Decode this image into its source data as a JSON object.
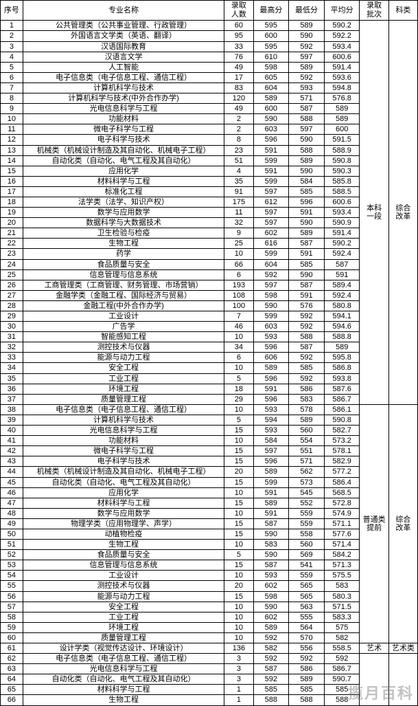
{
  "headers": {
    "idx": "序号",
    "major": "专业名称",
    "count": "录取\n人数",
    "max": "最高分",
    "min": "最低分",
    "avg": "平均分",
    "batch": "录取\n批次",
    "cat": "科类"
  },
  "groups": [
    {
      "batch": "本科\n一段",
      "cat": "综合\n改革",
      "rows": [
        {
          "i": 1,
          "m": "公共管理类（公共事业管理、行政管理）",
          "c": 60,
          "hi": 595,
          "lo": 589,
          "av": "590.2"
        },
        {
          "i": 2,
          "m": "外国语言文学类（英语、翻译）",
          "c": 95,
          "hi": 600,
          "lo": 590,
          "av": "592.2"
        },
        {
          "i": 3,
          "m": "汉语国际教育",
          "c": 33,
          "hi": 595,
          "lo": 592,
          "av": "593.4"
        },
        {
          "i": 4,
          "m": "汉语言文学",
          "c": 76,
          "hi": 610,
          "lo": 597,
          "av": "600.6"
        },
        {
          "i": 5,
          "m": "人工智能",
          "c": 49,
          "hi": 598,
          "lo": 589,
          "av": "591.4"
        },
        {
          "i": 6,
          "m": "电子信息类（电子信息工程、通信工程）",
          "c": 17,
          "hi": 605,
          "lo": 592,
          "av": "593.6"
        },
        {
          "i": 7,
          "m": "计算机科学与技术",
          "c": 83,
          "hi": 604,
          "lo": 593,
          "av": "594.8"
        },
        {
          "i": 8,
          "m": "计算机科学与技术(中外合作办学)",
          "c": 120,
          "hi": 589,
          "lo": 571,
          "av": "576.8"
        },
        {
          "i": 9,
          "m": "光电信息科学与工程",
          "c": 49,
          "hi": 600,
          "lo": 587,
          "av": "589"
        },
        {
          "i": 10,
          "m": "功能材料",
          "c": 2,
          "hi": 590,
          "lo": 588,
          "av": "589"
        },
        {
          "i": 11,
          "m": "微电子科学与工程",
          "c": 2,
          "hi": 603,
          "lo": 597,
          "av": "600"
        },
        {
          "i": 12,
          "m": "电子科学与技术",
          "c": 8,
          "hi": 596,
          "lo": 590,
          "av": "591.5"
        },
        {
          "i": 13,
          "m": "机械类（机械设计制造及其自动化、机械电子工程）",
          "c": 23,
          "hi": 591,
          "lo": 588,
          "av": "588.9"
        },
        {
          "i": 14,
          "m": "自动化类（自动化、电气工程及其自动化）",
          "c": 51,
          "hi": 599,
          "lo": 589,
          "av": "590.8"
        },
        {
          "i": 15,
          "m": "应用化学",
          "c": 4,
          "hi": 591,
          "lo": 590,
          "av": "590.3"
        },
        {
          "i": 16,
          "m": "材料科学与工程",
          "c": 35,
          "hi": 599,
          "lo": 584,
          "av": "585.8"
        },
        {
          "i": 17,
          "m": "标准化工程",
          "c": 91,
          "hi": 597,
          "lo": 585,
          "av": "588.5"
        },
        {
          "i": 18,
          "m": "法学类（法学、知识产权）",
          "c": 175,
          "hi": 612,
          "lo": 596,
          "av": "600.6"
        },
        {
          "i": 19,
          "m": "数学与应用数学",
          "c": 11,
          "hi": 597,
          "lo": 591,
          "av": "593.4"
        },
        {
          "i": 20,
          "m": "数据科学与大数据技术",
          "c": 32,
          "hi": 597,
          "lo": 590,
          "av": "590.9"
        },
        {
          "i": 21,
          "m": "卫生检验与检疫",
          "c": 9,
          "hi": 602,
          "lo": 589,
          "av": "591.4"
        },
        {
          "i": 22,
          "m": "生物工程",
          "c": 25,
          "hi": 616,
          "lo": 587,
          "av": "590.2"
        },
        {
          "i": 23,
          "m": "药学",
          "c": 10,
          "hi": 599,
          "lo": 591,
          "av": "592.4"
        },
        {
          "i": 24,
          "m": "食品质量与安全",
          "c": 66,
          "hi": 604,
          "lo": 585,
          "av": "587"
        },
        {
          "i": 25,
          "m": "信息管理与信息系统",
          "c": 6,
          "hi": 592,
          "lo": 590,
          "av": "591"
        },
        {
          "i": 26,
          "m": "工商管理类（工商管理、财务管理、市场营销）",
          "c": 193,
          "hi": 597,
          "lo": 587,
          "av": "589.4"
        },
        {
          "i": 27,
          "m": "金融学类（金融工程、国际经济与贸易）",
          "c": 108,
          "hi": 598,
          "lo": 591,
          "av": "592.4"
        },
        {
          "i": 28,
          "m": "金融工程(中外合作办学)",
          "c": 100,
          "hi": 590,
          "lo": 576,
          "av": "580.8"
        },
        {
          "i": 29,
          "m": "工业设计",
          "c": 7,
          "hi": 599,
          "lo": 592,
          "av": "594.1"
        },
        {
          "i": 30,
          "m": "广告学",
          "c": 46,
          "hi": 603,
          "lo": 592,
          "av": "594.6"
        },
        {
          "i": 31,
          "m": "智能感知工程",
          "c": 10,
          "hi": 593,
          "lo": 588,
          "av": "588.8"
        },
        {
          "i": 32,
          "m": "测控技术与仪器",
          "c": 34,
          "hi": 596,
          "lo": 587,
          "av": "589"
        },
        {
          "i": 33,
          "m": "能源与动力工程",
          "c": 6,
          "hi": 606,
          "lo": 592,
          "av": "595.8"
        },
        {
          "i": 34,
          "m": "安全工程",
          "c": 10,
          "hi": 589,
          "lo": 585,
          "av": "586.8"
        },
        {
          "i": 35,
          "m": "工业工程",
          "c": 5,
          "hi": 596,
          "lo": 592,
          "av": "593.8"
        },
        {
          "i": 36,
          "m": "环境工程",
          "c": 18,
          "hi": 591,
          "lo": 586,
          "av": "587.6"
        },
        {
          "i": 37,
          "m": "质量管理工程",
          "c": 29,
          "hi": 596,
          "lo": 583,
          "av": "586.7"
        }
      ]
    },
    {
      "batch": "普通类\n提前",
      "cat": "综合\n改革",
      "rows": [
        {
          "i": 38,
          "m": "电子信息类（电子信息工程、通信工程）",
          "c": 10,
          "hi": 593,
          "lo": 578,
          "av": "586.1"
        },
        {
          "i": 39,
          "m": "计算机科学与技术",
          "c": 5,
          "hi": 594,
          "lo": 589,
          "av": "590.8"
        },
        {
          "i": 40,
          "m": "光电信息科学与工程",
          "c": 15,
          "hi": 593,
          "lo": 560,
          "av": "582.7"
        },
        {
          "i": 41,
          "m": "功能材料",
          "c": 10,
          "hi": 584,
          "lo": 554,
          "av": "573.2"
        },
        {
          "i": 42,
          "m": "微电子科学与工程",
          "c": 15,
          "hi": 597,
          "lo": 551,
          "av": "578.1"
        },
        {
          "i": 43,
          "m": "电子科学与技术",
          "c": 15,
          "hi": 596,
          "lo": 571,
          "av": "582.9"
        },
        {
          "i": 44,
          "m": "机械类（机械设计制造及其自动化、机械电子工程）",
          "c": 20,
          "hi": 589,
          "lo": 562,
          "av": "577.2"
        },
        {
          "i": 45,
          "m": "自动化类（自动化、电气工程及其自动化）",
          "c": 15,
          "hi": 599,
          "lo": 573,
          "av": "586.4"
        },
        {
          "i": 46,
          "m": "应用化学",
          "c": 10,
          "hi": 591,
          "lo": 545,
          "av": "568.5"
        },
        {
          "i": 47,
          "m": "材料科学与工程",
          "c": 15,
          "hi": 589,
          "lo": 552,
          "av": "572.8"
        },
        {
          "i": 48,
          "m": "数学与应用数学",
          "c": 10,
          "hi": 591,
          "lo": 559,
          "av": "574.9"
        },
        {
          "i": 49,
          "m": "物理学类（应用物理学、声学）",
          "c": 15,
          "hi": 587,
          "lo": 559,
          "av": "571.1"
        },
        {
          "i": 50,
          "m": "动植物检疫",
          "c": 15,
          "hi": 590,
          "lo": 558,
          "av": "577.6"
        },
        {
          "i": 51,
          "m": "生物工程",
          "c": 10,
          "hi": 583,
          "lo": 560,
          "av": "571.4"
        },
        {
          "i": 52,
          "m": "食品质量与安全",
          "c": 5,
          "hi": 590,
          "lo": 569,
          "av": "584.2"
        },
        {
          "i": 53,
          "m": "信息管理与信息系统",
          "c": 15,
          "hi": 587,
          "lo": 541,
          "av": "571.3"
        },
        {
          "i": 54,
          "m": "工业设计",
          "c": 10,
          "hi": 593,
          "lo": 559,
          "av": "575.5"
        },
        {
          "i": 55,
          "m": "测控技术与仪器",
          "c": 20,
          "hi": 602,
          "lo": 565,
          "av": "583"
        },
        {
          "i": 56,
          "m": "能源与动力工程",
          "c": 15,
          "hi": 598,
          "lo": 565,
          "av": "580.3"
        },
        {
          "i": 57,
          "m": "安全工程",
          "c": 10,
          "hi": 590,
          "lo": 563,
          "av": "571.5"
        },
        {
          "i": 58,
          "m": "工业工程",
          "c": 10,
          "hi": 602,
          "lo": 555,
          "av": "583.3"
        },
        {
          "i": 59,
          "m": "环境工程",
          "c": 10,
          "hi": 589,
          "lo": 564,
          "av": "575"
        },
        {
          "i": 60,
          "m": "质量管理工程",
          "c": 10,
          "hi": 592,
          "lo": 570,
          "av": "582"
        }
      ]
    },
    {
      "batch": "艺术",
      "cat": "艺术类",
      "rows": [
        {
          "i": 61,
          "m": "设计学类（视觉传达设计、环境设计）",
          "c": 136,
          "hi": 582,
          "lo": 556,
          "av": "558.5"
        }
      ]
    },
    {
      "batch": "",
      "cat": "",
      "rows": [
        {
          "i": 62,
          "m": "电子信息类（电子信息工程、通信工程）",
          "c": 3,
          "hi": 592,
          "lo": 592,
          "av": "592"
        },
        {
          "i": 63,
          "m": "光电信息科学与工程",
          "c": 3,
          "hi": 587,
          "lo": 586,
          "av": "586.7"
        },
        {
          "i": 64,
          "m": "自动化类（自动化、电气工程及其自动化）",
          "c": 3,
          "hi": 592,
          "lo": 589,
          "av": "590.7"
        },
        {
          "i": 65,
          "m": "材料科学与工程",
          "c": 1,
          "hi": 585,
          "lo": 585,
          "av": "585"
        },
        {
          "i": 66,
          "m": "生物工程",
          "c": 1,
          "hi": 588,
          "lo": 588,
          "av": "588"
        }
      ]
    }
  ],
  "watermark": "揽月百科",
  "style": {
    "border_color": "#000000",
    "bg_color": "#ffffff",
    "text_color": "#000000",
    "font_size_pt": 8,
    "header_font_size_pt": 8.5,
    "watermark_color": "rgba(120,120,120,0.45)"
  }
}
